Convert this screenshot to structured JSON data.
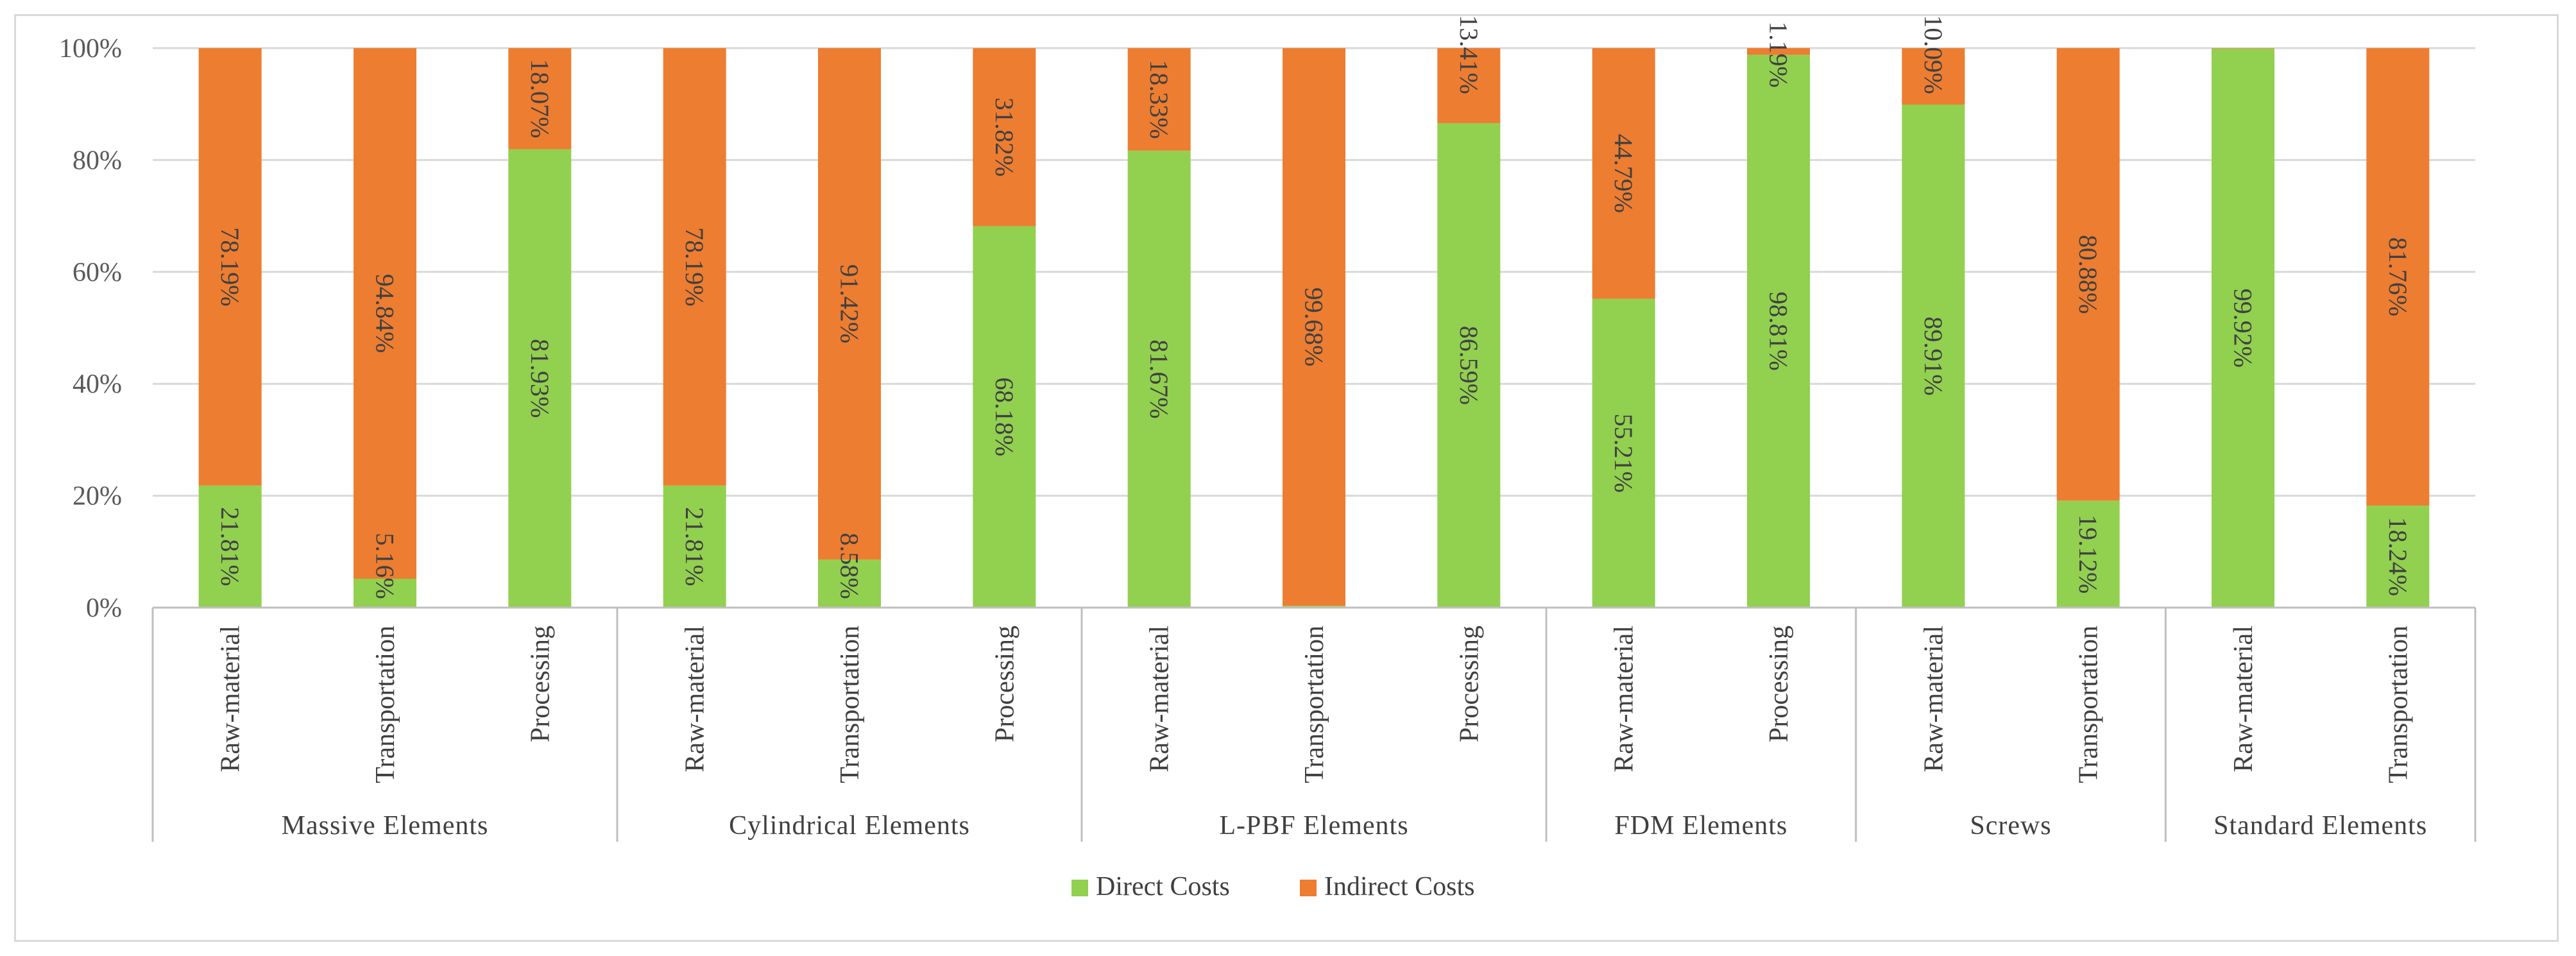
{
  "chart_data": {
    "type": "bar",
    "stacked": true,
    "normalized": true,
    "title": "",
    "xlabel": "",
    "ylabel": "",
    "ylim": [
      0,
      100
    ],
    "yticks": [
      "0%",
      "20%",
      "40%",
      "60%",
      "80%",
      "100%"
    ],
    "grid": true,
    "legend_position": "bottom",
    "groups": [
      {
        "name": "Massive Elements",
        "categories": [
          "Raw-material",
          "Transportation",
          "Processing"
        ]
      },
      {
        "name": "Cylindrical Elements",
        "categories": [
          "Raw-material",
          "Transportation",
          "Processing"
        ]
      },
      {
        "name": "L-PBF Elements",
        "categories": [
          "Raw-material",
          "Transportation",
          "Processing"
        ]
      },
      {
        "name": "FDM Elements",
        "categories": [
          "Raw-material",
          "Processing"
        ]
      },
      {
        "name": "Screws",
        "categories": [
          "Raw-material",
          "Transportation"
        ]
      },
      {
        "name": "Standard Elements",
        "categories": [
          "Raw-material",
          "Transportation"
        ]
      }
    ],
    "series": [
      {
        "name": "Direct Costs",
        "color": "#92d050",
        "values": [
          21.81,
          5.16,
          81.93,
          21.81,
          8.58,
          68.18,
          81.67,
          0.32,
          86.59,
          55.21,
          98.81,
          89.91,
          19.12,
          99.92,
          18.24
        ],
        "labels": [
          "21.81%",
          "5.16%",
          "81.93%",
          "21.81%",
          "8.58%",
          "68.18%",
          "81.67%",
          "",
          "86.59%",
          "55.21%",
          "98.81%",
          "89.91%",
          "19.12%",
          "99.92%",
          "18.24%"
        ]
      },
      {
        "name": "Indirect Costs",
        "color": "#ed7d31",
        "values": [
          78.19,
          94.84,
          18.07,
          78.19,
          91.42,
          31.82,
          18.33,
          99.68,
          13.41,
          44.79,
          1.19,
          10.09,
          80.88,
          0.08,
          81.76
        ],
        "labels": [
          "78.19%",
          "94.84%",
          "18.07%",
          "78.19%",
          "91.42%",
          "31.82%",
          "18.33%",
          "99.68%",
          "13.41%",
          "44.79%",
          "1.19%",
          "10.09%",
          "80.88%",
          "",
          "81.76%"
        ]
      }
    ]
  }
}
